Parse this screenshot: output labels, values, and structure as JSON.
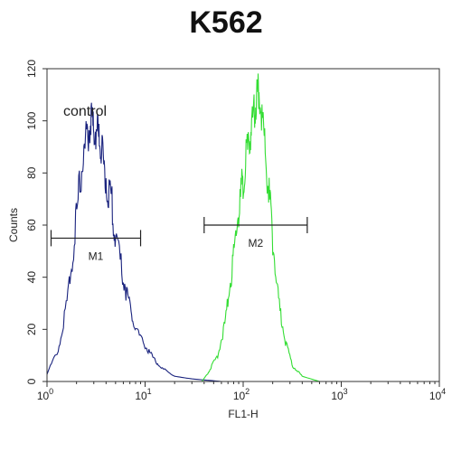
{
  "chart_data": {
    "type": "line",
    "title": "K562",
    "xlabel": "FL1-H",
    "ylabel": "Counts",
    "xscale": "log",
    "xlim": [
      1,
      10000
    ],
    "ylim": [
      0,
      120
    ],
    "x_ticks": [
      {
        "value": 1,
        "base": "10",
        "exp": "0"
      },
      {
        "value": 10,
        "base": "10",
        "exp": "1"
      },
      {
        "value": 100,
        "base": "10",
        "exp": "2"
      },
      {
        "value": 1000,
        "base": "10",
        "exp": "3"
      },
      {
        "value": 10000,
        "base": "10",
        "exp": "4"
      }
    ],
    "y_ticks": [
      "0",
      "20",
      "40",
      "60",
      "80",
      "100",
      "120"
    ],
    "grid": false,
    "annotation": "control",
    "series": [
      {
        "color": "#1a237e",
        "x": [
          1,
          1.3,
          1.6,
          1.9,
          2.2,
          2.5,
          2.8,
          3.0,
          3.3,
          3.6,
          4.0,
          4.5,
          5.0,
          6.0,
          7.0,
          8.0,
          10,
          12,
          15,
          20,
          30,
          60,
          200,
          1000,
          10000
        ],
        "y": [
          3,
          12,
          30,
          55,
          78,
          92,
          100,
          97,
          95,
          88,
          78,
          70,
          55,
          40,
          28,
          20,
          14,
          9,
          5,
          2,
          1,
          0,
          0,
          0,
          0
        ]
      },
      {
        "color": "#33dd33",
        "x": [
          1,
          20,
          38,
          45,
          55,
          65,
          75,
          85,
          95,
          105,
          115,
          125,
          135,
          145,
          160,
          180,
          200,
          230,
          270,
          320,
          400,
          600,
          1000,
          10000
        ],
        "y": [
          0,
          0,
          0,
          4,
          10,
          22,
          40,
          58,
          72,
          84,
          92,
          100,
          108,
          112,
          98,
          75,
          55,
          30,
          15,
          6,
          2,
          0,
          0,
          0
        ]
      }
    ],
    "markers": [
      {
        "label": "M1",
        "x_start": 1.1,
        "x_end": 9,
        "y": 55
      },
      {
        "label": "M2",
        "x_start": 40,
        "x_end": 450,
        "y": 60
      }
    ]
  }
}
